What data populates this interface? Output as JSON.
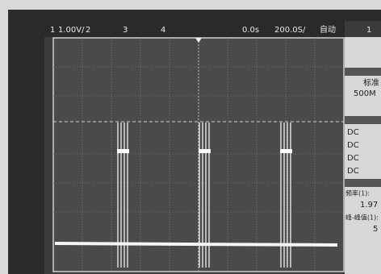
{
  "top_bar": {
    "channel_1": "1",
    "scale": "1.00V/",
    "channel_2": "2",
    "channel_3": "3",
    "channel_4": "4",
    "delay": "0.0s",
    "timebase": "200.0S/",
    "mode": "自动",
    "trigger_source": "1"
  },
  "side_panel": {
    "sample_label": "标准",
    "sample_rate": "500M",
    "couplings": [
      "DC",
      "DC",
      "DC",
      "DC"
    ],
    "freq_label": "频率(1):",
    "freq_value": "1.97",
    "pkpk_label": "峰-峰值(1):",
    "pkpk_value": "5"
  }
}
